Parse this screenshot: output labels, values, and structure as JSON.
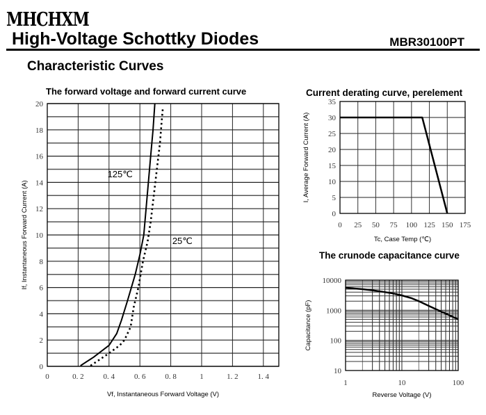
{
  "header": {
    "logo": "MHCHXM",
    "title": "High-Voltage Schottky Diodes",
    "part_number": "MBR30100PT",
    "section": "Characteristic Curves"
  },
  "chart_data": [
    {
      "type": "line",
      "title": "The forward voltage and forward current curve",
      "xlabel": "Vf, Instantaneous Forward Voltage (V)",
      "ylabel": "If, Instantaneous Forward Current (A)",
      "xlim": [
        0,
        1.5
      ],
      "ylim": [
        0,
        20
      ],
      "xticks": [
        0,
        0.2,
        0.4,
        0.6,
        0.8,
        1,
        1.2,
        1.4
      ],
      "xtick_labels": [
        "0",
        "0. 2",
        "0. 4",
        "0. 6",
        "0. 8",
        "1",
        "1. 2",
        "1. 4"
      ],
      "yticks": [
        0,
        2,
        4,
        6,
        8,
        10,
        12,
        14,
        16,
        18,
        20
      ],
      "ytick_labels": [
        "0",
        "2",
        "4",
        "6",
        "8",
        "10",
        "12",
        "14",
        "16",
        "18",
        "20"
      ],
      "grid": true,
      "series": [
        {
          "name": "125℃",
          "style": "solid",
          "x": [
            0.215,
            0.3,
            0.4,
            0.45,
            0.48,
            0.52,
            0.57,
            0.6,
            0.625,
            0.64,
            0.655,
            0.67,
            0.685,
            0.697
          ],
          "y": [
            0.05,
            0.7,
            1.6,
            2.5,
            3.5,
            5,
            7,
            8.5,
            10,
            12,
            14,
            16,
            18,
            20
          ]
        },
        {
          "name": "25℃",
          "style": "dotted",
          "x": [
            0.28,
            0.35,
            0.4,
            0.47,
            0.5,
            0.54,
            0.56,
            0.59,
            0.62,
            0.65,
            0.67,
            0.69,
            0.71,
            0.73,
            0.74,
            0.748
          ],
          "y": [
            0.05,
            0.6,
            1,
            1.6,
            2,
            3,
            4.5,
            6,
            8,
            9.5,
            11,
            13,
            15,
            17,
            18.5,
            19.6
          ]
        }
      ],
      "annotations": [
        {
          "text": "125℃",
          "x": 0.39,
          "y": 14.4
        },
        {
          "text": "25℃",
          "x": 0.81,
          "y": 9.3
        }
      ]
    },
    {
      "type": "line",
      "title": "Current derating curve, perelement",
      "xlabel": "Tc, Case Temp (℃)",
      "ylabel": "I, Average Forward Current (A)",
      "xlim": [
        0,
        175
      ],
      "ylim": [
        0,
        35
      ],
      "xticks": [
        0,
        25,
        50,
        75,
        100,
        125,
        150,
        175
      ],
      "xtick_labels": [
        "0",
        "25",
        "50",
        "75",
        "100",
        "125",
        "150",
        "175"
      ],
      "yticks": [
        0,
        5,
        10,
        15,
        20,
        25,
        30,
        35
      ],
      "ytick_labels": [
        "0",
        "5",
        "10",
        "15",
        "20",
        "25",
        "30",
        "35"
      ],
      "grid": true,
      "series": [
        {
          "name": "derating",
          "x": [
            0,
            115,
            150
          ],
          "y": [
            30,
            30,
            0
          ]
        }
      ]
    },
    {
      "type": "line",
      "title": "The crunode capacitance curve",
      "xlabel": "Reverse Voltage (V)",
      "ylabel": "Capacitance (pF)",
      "xscale": "log",
      "yscale": "log",
      "xlim": [
        1,
        100
      ],
      "ylim": [
        10,
        10000
      ],
      "xticks": [
        1,
        10,
        100
      ],
      "xtick_labels": [
        "1",
        "10",
        "100"
      ],
      "yticks": [
        10,
        100,
        1000,
        10000
      ],
      "ytick_labels": [
        "10",
        "100",
        "1000",
        "10000"
      ],
      "grid": true,
      "series": [
        {
          "name": "capacitance",
          "x": [
            1,
            2,
            3,
            5,
            7,
            10,
            15,
            20,
            30,
            50,
            70,
            100
          ],
          "y": [
            5600,
            5000,
            4600,
            4000,
            3600,
            3100,
            2500,
            2000,
            1400,
            900,
            680,
            500
          ]
        }
      ]
    }
  ]
}
